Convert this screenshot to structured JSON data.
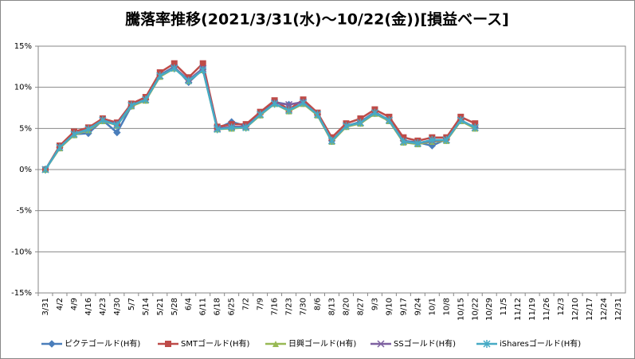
{
  "chart_data": {
    "type": "line",
    "title": "騰落率推移(2021/3/31(水)～10/22(金))[損益ベース]",
    "categories": [
      "3/31",
      "4/2",
      "4/9",
      "4/16",
      "4/23",
      "4/30",
      "5/7",
      "5/14",
      "5/21",
      "5/28",
      "6/4",
      "6/11",
      "6/18",
      "6/25",
      "7/2",
      "7/9",
      "7/16",
      "7/23",
      "7/30",
      "8/6",
      "8/13",
      "8/20",
      "8/27",
      "9/3",
      "9/10",
      "9/17",
      "9/24",
      "10/1",
      "10/8",
      "10/15",
      "10/22",
      "10/29",
      "11/5",
      "11/12",
      "11/19",
      "11/26",
      "12/3",
      "12/10",
      "12/17",
      "12/24",
      "12/31"
    ],
    "series": [
      {
        "name": "ピクテゴールド(H有)",
        "color": "#4a7ebb",
        "marker": "diamond",
        "values": [
          0,
          2.7,
          4.3,
          4.4,
          6.0,
          4.5,
          7.7,
          8.5,
          11.5,
          12.5,
          10.6,
          12.2,
          5.0,
          5.8,
          5.3,
          6.8,
          8.2,
          7.9,
          8.2,
          6.7,
          3.5,
          5.3,
          5.8,
          7.0,
          6.0,
          3.5,
          3.3,
          2.9,
          3.7,
          6.0,
          5.1,
          null,
          null,
          null,
          null,
          null,
          null,
          null,
          null,
          null,
          null
        ]
      },
      {
        "name": "SMTゴールド(H有)",
        "color": "#be4b48",
        "marker": "square",
        "values": [
          0,
          2.9,
          4.6,
          5.1,
          6.2,
          5.7,
          8.0,
          8.8,
          11.8,
          12.9,
          11.2,
          12.9,
          5.2,
          5.5,
          5.5,
          7.0,
          8.4,
          7.3,
          8.5,
          6.9,
          3.9,
          5.6,
          6.2,
          7.3,
          6.4,
          3.9,
          3.5,
          3.9,
          3.9,
          6.4,
          5.6,
          null,
          null,
          null,
          null,
          null,
          null,
          null,
          null,
          null,
          null
        ]
      },
      {
        "name": "日興ゴールド(H有)",
        "color": "#98b954",
        "marker": "triangle",
        "values": [
          0,
          2.6,
          4.2,
          4.8,
          5.9,
          5.4,
          7.7,
          8.4,
          11.3,
          12.3,
          10.8,
          12.1,
          4.9,
          5.0,
          5.1,
          6.6,
          8.0,
          7.1,
          8.0,
          6.6,
          3.4,
          5.2,
          5.6,
          6.8,
          5.9,
          3.3,
          3.1,
          3.4,
          3.5,
          5.9,
          5.0,
          null,
          null,
          null,
          null,
          null,
          null,
          null,
          null,
          null,
          null
        ]
      },
      {
        "name": "SSゴールド(H有)",
        "color": "#7d60a0",
        "marker": "x",
        "values": [
          0,
          2.7,
          4.3,
          4.9,
          6.0,
          5.5,
          7.8,
          8.5,
          11.4,
          12.4,
          10.9,
          12.3,
          5.0,
          5.2,
          5.2,
          6.7,
          8.1,
          7.9,
          8.2,
          6.7,
          3.5,
          5.3,
          5.7,
          6.9,
          6.0,
          3.4,
          3.2,
          3.5,
          3.6,
          6.0,
          5.1,
          null,
          null,
          null,
          null,
          null,
          null,
          null,
          null,
          null,
          null
        ]
      },
      {
        "name": "iSharesゴールド(H有)",
        "color": "#46aac5",
        "marker": "star",
        "values": [
          0,
          2.7,
          4.3,
          4.9,
          6.0,
          5.4,
          7.8,
          8.5,
          11.4,
          12.3,
          10.8,
          12.1,
          4.9,
          5.1,
          5.1,
          6.7,
          8.0,
          7.2,
          8.1,
          6.7,
          3.5,
          5.3,
          5.7,
          6.9,
          6.0,
          3.4,
          3.2,
          3.6,
          3.6,
          6.0,
          5.1,
          null,
          null,
          null,
          null,
          null,
          null,
          null,
          null,
          null,
          null
        ]
      }
    ],
    "ylim": [
      -15,
      15
    ],
    "yticks": [
      {
        "value": -15,
        "label": "-15%"
      },
      {
        "value": -10,
        "label": "-10%"
      },
      {
        "value": -5,
        "label": "-5%"
      },
      {
        "value": 0,
        "label": "0%"
      },
      {
        "value": 5,
        "label": "5%"
      },
      {
        "value": 10,
        "label": "10%"
      },
      {
        "value": 15,
        "label": "15%"
      }
    ],
    "grid": true,
    "legend": "bottom"
  }
}
